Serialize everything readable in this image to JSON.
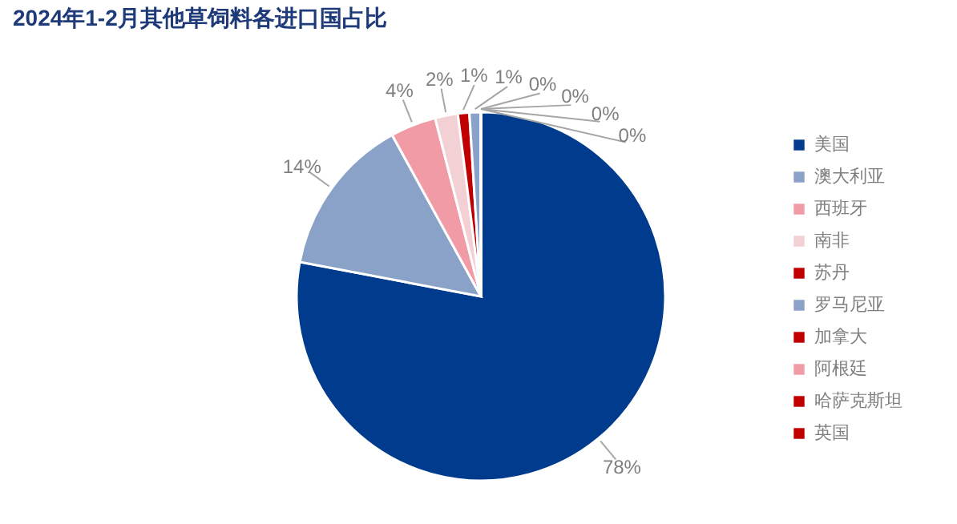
{
  "chart_data": {
    "type": "pie",
    "title": "2024年1-2月其他草饲料各进口国占比",
    "categories": [
      "美国",
      "澳大利亚",
      "西班牙",
      "南非",
      "苏丹",
      "罗马尼亚",
      "加拿大",
      "阿根廷",
      "哈萨克斯坦",
      "英国"
    ],
    "values": [
      78,
      14,
      4,
      2,
      1,
      1,
      0,
      0,
      0,
      0
    ],
    "value_labels": [
      "78%",
      "14%",
      "4%",
      "2%",
      "1%",
      "1%",
      "0%",
      "0%",
      "0%",
      "0%"
    ],
    "colors": [
      "#003b8e",
      "#8aa1c8",
      "#f19ba6",
      "#f3d0d4",
      "#c00000",
      "#8aa1c8",
      "#c00000",
      "#f19ba6",
      "#c00000",
      "#c00000"
    ],
    "legend": "right"
  }
}
